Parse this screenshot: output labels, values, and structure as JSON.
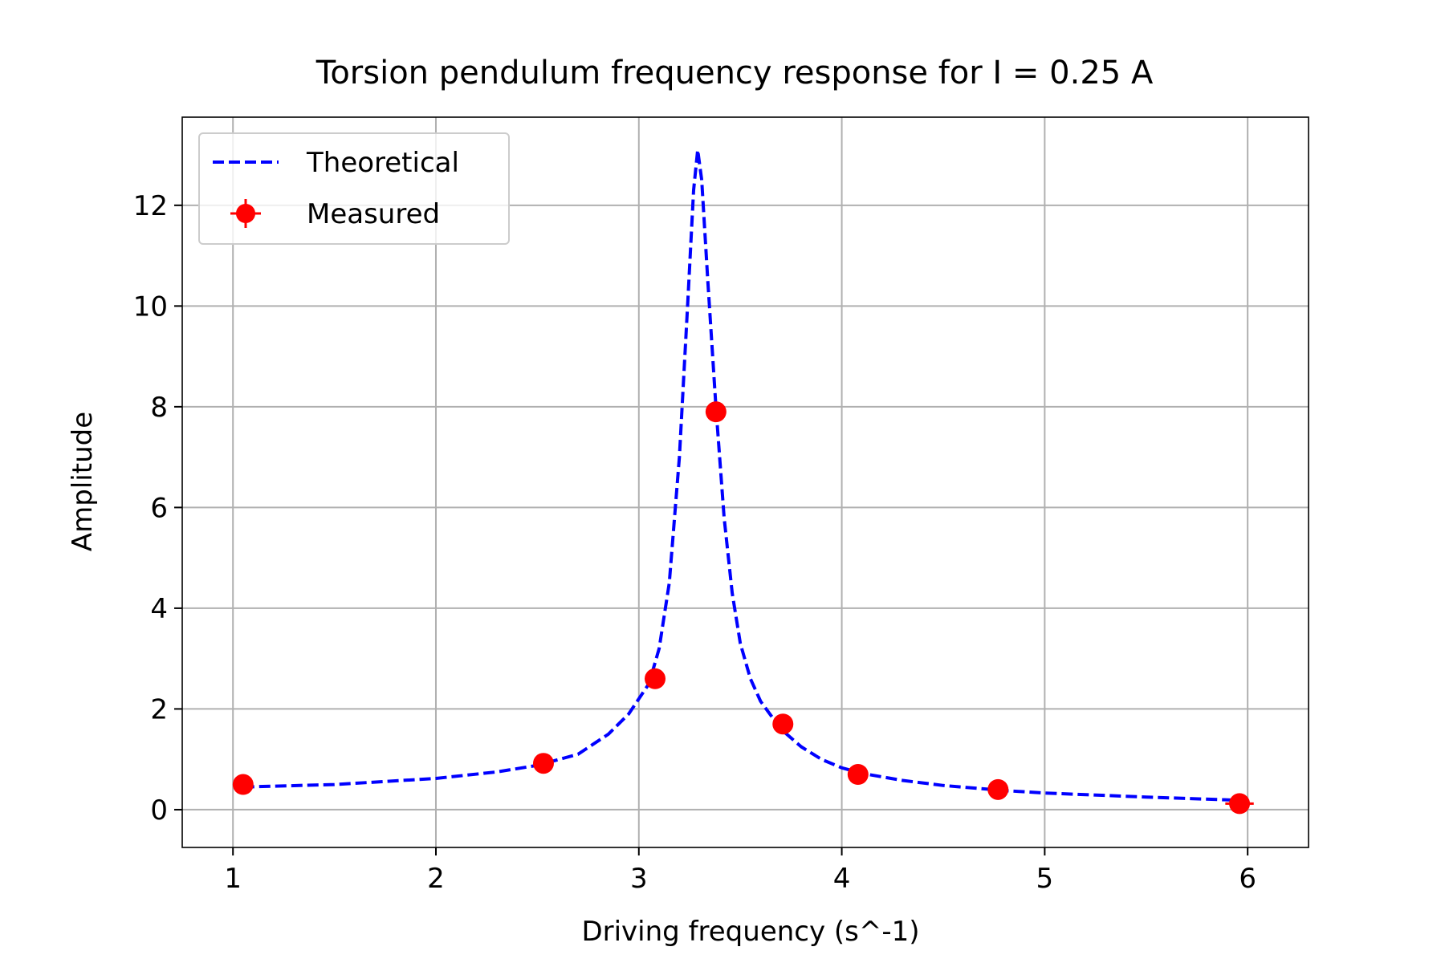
{
  "chart_data": {
    "type": "line",
    "title": "Torsion pendulum frequency response for I = 0.25 A",
    "xlabel": "Driving frequency (s^-1)",
    "ylabel": "Amplitude",
    "xlim": [
      0.75,
      6.3
    ],
    "ylim": [
      -0.75,
      13.75
    ],
    "xticks": [
      1,
      2,
      3,
      4,
      5,
      6
    ],
    "yticks": [
      0,
      2,
      4,
      6,
      8,
      10,
      12
    ],
    "grid": true,
    "legend_position": "top-left",
    "series": [
      {
        "name": "Theoretical",
        "style": "dashed-line",
        "color": "#0000ff",
        "x": [
          1.05,
          1.5,
          2.0,
          2.3,
          2.5,
          2.7,
          2.85,
          2.95,
          3.05,
          3.1,
          3.15,
          3.2,
          3.24,
          3.27,
          3.29,
          3.31,
          3.34,
          3.38,
          3.42,
          3.46,
          3.5,
          3.55,
          3.6,
          3.7,
          3.8,
          3.9,
          4.0,
          4.1,
          4.3,
          4.5,
          4.8,
          5.0,
          5.5,
          6.0
        ],
        "y": [
          0.45,
          0.5,
          0.62,
          0.75,
          0.88,
          1.1,
          1.5,
          1.9,
          2.5,
          3.2,
          4.5,
          7.0,
          10.0,
          12.3,
          13.1,
          12.5,
          10.5,
          8.0,
          5.8,
          4.3,
          3.3,
          2.6,
          2.15,
          1.6,
          1.25,
          1.0,
          0.83,
          0.72,
          0.58,
          0.48,
          0.38,
          0.33,
          0.25,
          0.18
        ]
      },
      {
        "name": "Measured",
        "style": "markers-with-errorbars",
        "color": "#ff0000",
        "x": [
          1.05,
          2.53,
          3.08,
          3.38,
          3.71,
          4.08,
          4.77,
          5.96
        ],
        "y": [
          0.5,
          0.92,
          2.6,
          7.9,
          1.7,
          0.7,
          0.4,
          0.12
        ],
        "xerr": [
          0.0,
          0.0,
          0.0,
          0.0,
          0.0,
          0.0,
          0.05,
          0.07
        ],
        "yerr": [
          0.0,
          0.0,
          0.0,
          0.0,
          0.0,
          0.0,
          0.0,
          0.0
        ]
      }
    ]
  }
}
